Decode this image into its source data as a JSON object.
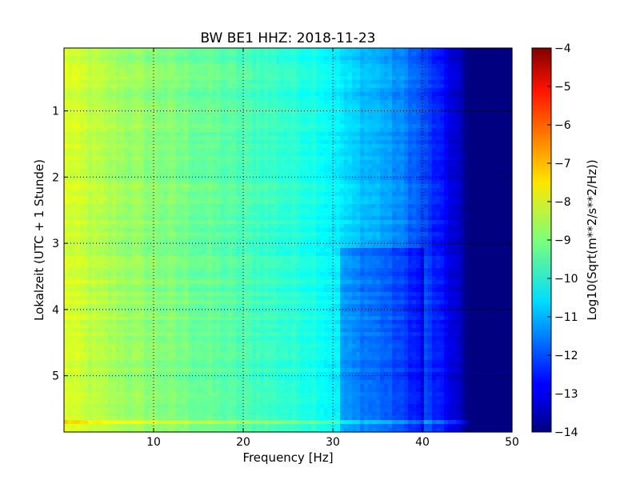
{
  "chart_data": [
    {
      "type": "heatmap",
      "title": "BW BE1 HHZ: 2018-11-23",
      "xlabel": "Frequency [Hz]",
      "ylabel": "Lokalzeit (UTC + 1 Stunde)",
      "xlim": [
        0,
        50
      ],
      "ylim": [
        5.85,
        0.05
      ],
      "x_ticks": [
        10,
        20,
        30,
        40,
        50
      ],
      "x_tick_labels": [
        "10",
        "20",
        "30",
        "40",
        "50"
      ],
      "y_ticks": [
        1,
        2,
        3,
        4,
        5
      ],
      "y_tick_labels": [
        "1",
        "2",
        "3",
        "4",
        "5"
      ],
      "grid": true,
      "grid_style": "dotted",
      "colormap": "jet",
      "frequency_profile": {
        "frequency_hz": [
          0,
          2,
          5,
          10,
          15,
          20,
          25,
          28,
          30,
          32,
          35,
          38,
          40,
          42,
          44,
          45,
          50
        ],
        "log10_amplitude": [
          -8.1,
          -8.3,
          -8.6,
          -8.9,
          -9.2,
          -9.5,
          -9.8,
          -10.0,
          -10.3,
          -10.7,
          -11.0,
          -11.5,
          -12.0,
          -12.6,
          -13.3,
          -14.0,
          -14.0
        ]
      },
      "annotations": [
        {
          "text": "deeper trough 31–40 Hz after ~3.1 h",
          "time_h_from": 3.1,
          "freq_from": 31,
          "freq_to": 40
        },
        {
          "text": "broadband band near 5.7 h",
          "time_h": 5.7,
          "freq_to": 45
        }
      ]
    },
    {
      "type": "colorbar",
      "label": "Log10(Sqrt(m**2/s**2/Hz))",
      "range": [
        -14,
        -4
      ],
      "ticks": [
        -4,
        -5,
        -6,
        -7,
        -8,
        -9,
        -10,
        -11,
        -12,
        -13,
        -14
      ],
      "tick_labels": [
        "−4",
        "−5",
        "−6",
        "−7",
        "−8",
        "−9",
        "−10",
        "−11",
        "−12",
        "−13",
        "−14"
      ]
    }
  ]
}
